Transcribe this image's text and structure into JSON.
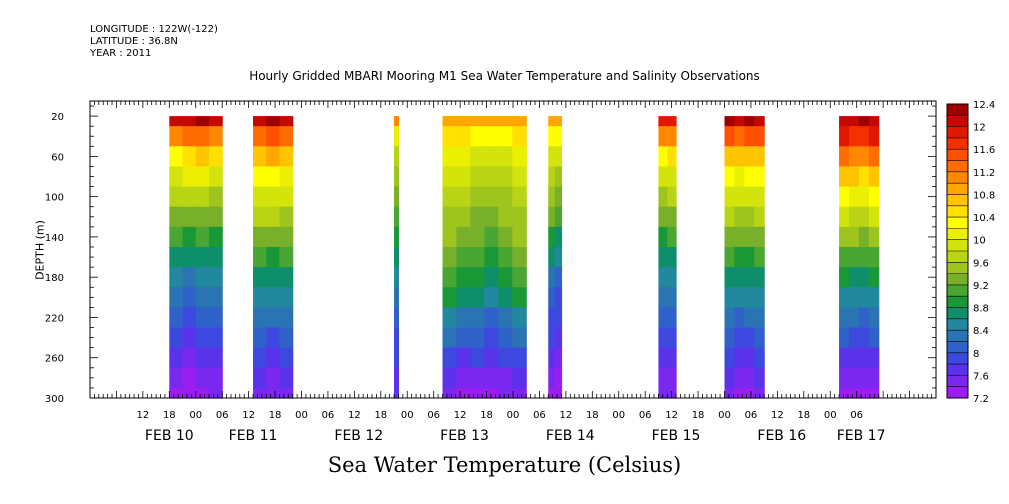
{
  "header": {
    "longitude": "LONGITUDE : 122W(-122)",
    "latitude": "LATITUDE : 36.8N",
    "year": "YEAR : 2011"
  },
  "chart_data": {
    "type": "heatmap",
    "title": "Hourly Gridded MBARI Mooring M1 Sea Water Temperature and Salinity Observations",
    "ylabel": "DEPTH (m)",
    "xlabel": "Sea Water Temperature (Celsius)",
    "ylim": [
      0,
      300
    ],
    "y_inverted": true,
    "y_ticks": [
      20,
      60,
      100,
      140,
      180,
      220,
      260,
      300
    ],
    "x_range_hours": [
      0,
      192
    ],
    "x_hour_ticks": [
      {
        "hour": 12,
        "label": "12"
      },
      {
        "hour": 18,
        "label": "18"
      },
      {
        "hour": 24,
        "label": "00"
      },
      {
        "hour": 30,
        "label": "06"
      },
      {
        "hour": 36,
        "label": "12"
      },
      {
        "hour": 42,
        "label": "18"
      },
      {
        "hour": 48,
        "label": "00"
      },
      {
        "hour": 54,
        "label": "06"
      },
      {
        "hour": 60,
        "label": "12"
      },
      {
        "hour": 66,
        "label": "18"
      },
      {
        "hour": 72,
        "label": "00"
      },
      {
        "hour": 78,
        "label": "06"
      },
      {
        "hour": 84,
        "label": "12"
      },
      {
        "hour": 90,
        "label": "18"
      },
      {
        "hour": 96,
        "label": "00"
      },
      {
        "hour": 102,
        "label": "06"
      },
      {
        "hour": 108,
        "label": "12"
      },
      {
        "hour": 114,
        "label": "18"
      },
      {
        "hour": 120,
        "label": "00"
      },
      {
        "hour": 126,
        "label": "06"
      },
      {
        "hour": 132,
        "label": "12"
      },
      {
        "hour": 138,
        "label": "18"
      },
      {
        "hour": 144,
        "label": "00"
      },
      {
        "hour": 150,
        "label": "06"
      },
      {
        "hour": 156,
        "label": "12"
      },
      {
        "hour": 162,
        "label": "18"
      },
      {
        "hour": 168,
        "label": "00"
      },
      {
        "hour": 174,
        "label": "06"
      }
    ],
    "day_labels": [
      {
        "hour": 18,
        "label": "FEB 10"
      },
      {
        "hour": 37,
        "label": "FEB 11"
      },
      {
        "hour": 61,
        "label": "FEB 12"
      },
      {
        "hour": 85,
        "label": "FEB 13"
      },
      {
        "hour": 109,
        "label": "FEB 14"
      },
      {
        "hour": 133,
        "label": "FEB 15"
      },
      {
        "hour": 157,
        "label": "FEB 16"
      },
      {
        "hour": 175,
        "label": "FEB 17"
      }
    ],
    "colorbar_levels": [
      7.2,
      7.4,
      7.6,
      7.8,
      8,
      8.2,
      8.4,
      8.6,
      8.8,
      9,
      9.2,
      9.4,
      9.6,
      9.8,
      10,
      10.2,
      10.4,
      10.6,
      10.8,
      11,
      11.2,
      11.4,
      11.6,
      11.8,
      12,
      12.2,
      12.4
    ],
    "colorbar_labels": [
      "7.2",
      "7.6",
      "8",
      "8.4",
      "8.8",
      "9.2",
      "9.6",
      "10",
      "10.4",
      "10.8",
      "11.2",
      "11.6",
      "12",
      "12.4"
    ],
    "colorbar_colors": [
      "#9a1ef0",
      "#7a28f0",
      "#5a32ea",
      "#3c48de",
      "#2e62c8",
      "#2a74b4",
      "#22889e",
      "#0e8e6a",
      "#1a9838",
      "#4aa632",
      "#78b02a",
      "#9ec41e",
      "#b8d414",
      "#d2e40c",
      "#eaf000",
      "#ffff00",
      "#ffe000",
      "#ffc400",
      "#ffa600",
      "#ff8800",
      "#ff6c00",
      "#ff5000",
      "#f43000",
      "#e01800",
      "#c40a00",
      "#9e0000"
    ],
    "depth_grid": [
      20,
      40,
      60,
      80,
      100,
      120,
      140,
      160,
      180,
      200,
      220,
      240,
      260,
      280,
      300
    ],
    "segments": [
      {
        "start_hour": 18,
        "end_hour": 30,
        "temperature": [
          [
            12.0,
            12.1,
            12.2,
            12.0
          ],
          [
            11.0,
            11.2,
            11.3,
            11.0
          ],
          [
            10.3,
            10.5,
            10.6,
            10.4
          ],
          [
            9.9,
            10.0,
            10.1,
            9.9
          ],
          [
            9.6,
            9.7,
            9.7,
            9.5
          ],
          [
            9.3,
            9.3,
            9.3,
            9.2
          ],
          [
            9.0,
            8.9,
            9.0,
            8.9
          ],
          [
            8.7,
            8.6,
            8.7,
            8.7
          ],
          [
            8.5,
            8.3,
            8.4,
            8.5
          ],
          [
            8.3,
            8.1,
            8.2,
            8.3
          ],
          [
            8.1,
            7.9,
            8.0,
            8.1
          ],
          [
            7.9,
            7.7,
            7.8,
            7.9
          ],
          [
            7.7,
            7.5,
            7.6,
            7.7
          ],
          [
            7.5,
            7.3,
            7.4,
            7.5
          ],
          [
            7.3,
            7.2,
            7.3,
            7.4
          ]
        ]
      },
      {
        "start_hour": 37,
        "end_hour": 46,
        "temperature": [
          [
            12.1,
            12.2,
            12.1
          ],
          [
            11.3,
            11.5,
            11.3
          ],
          [
            10.6,
            10.8,
            10.6
          ],
          [
            10.2,
            10.3,
            10.1
          ],
          [
            9.9,
            9.9,
            9.8
          ],
          [
            9.6,
            9.6,
            9.5
          ],
          [
            9.3,
            9.2,
            9.2
          ],
          [
            9.0,
            8.9,
            9.0
          ],
          [
            8.7,
            8.6,
            8.7
          ],
          [
            8.5,
            8.4,
            8.4
          ],
          [
            8.2,
            8.2,
            8.2
          ],
          [
            8.0,
            7.9,
            8.0
          ],
          [
            7.8,
            7.7,
            7.8
          ],
          [
            7.6,
            7.5,
            7.6
          ],
          [
            7.4,
            7.4,
            7.4
          ]
        ]
      },
      {
        "start_hour": 69,
        "end_hour": 70,
        "temperature": [
          [
            11.0
          ],
          [
            10.0
          ],
          [
            9.7
          ],
          [
            9.4
          ],
          [
            9.2
          ],
          [
            9.0
          ],
          [
            8.8
          ],
          [
            8.6
          ],
          [
            8.4
          ],
          [
            8.2
          ],
          [
            8.0
          ],
          [
            7.9
          ],
          [
            7.8
          ],
          [
            7.7
          ],
          [
            7.7
          ]
        ]
      },
      {
        "start_hour": 80,
        "end_hour": 99,
        "temperature": [
          [
            10.9,
            10.9,
            10.9,
            10.9,
            10.9,
            10.9
          ],
          [
            10.4,
            10.5,
            10.3,
            10.2,
            10.3,
            10.4
          ],
          [
            10.0,
            10.1,
            9.9,
            9.8,
            9.9,
            10.0
          ],
          [
            9.8,
            9.9,
            9.7,
            9.6,
            9.7,
            9.8
          ],
          [
            9.6,
            9.7,
            9.5,
            9.4,
            9.5,
            9.6
          ],
          [
            9.5,
            9.5,
            9.3,
            9.2,
            9.4,
            9.5
          ],
          [
            9.4,
            9.3,
            9.2,
            9.0,
            9.2,
            9.4
          ],
          [
            9.2,
            9.1,
            9.0,
            8.8,
            9.0,
            9.2
          ],
          [
            9.0,
            8.9,
            8.8,
            8.6,
            8.8,
            9.0
          ],
          [
            8.8,
            8.6,
            8.6,
            8.4,
            8.6,
            8.8
          ],
          [
            8.5,
            8.3,
            8.3,
            8.1,
            8.3,
            8.5
          ],
          [
            8.2,
            8.0,
            8.0,
            7.9,
            8.0,
            8.2
          ],
          [
            7.9,
            7.7,
            7.8,
            7.6,
            7.8,
            7.9
          ],
          [
            7.6,
            7.5,
            7.5,
            7.4,
            7.5,
            7.6
          ],
          [
            7.4,
            7.3,
            7.3,
            7.3,
            7.4,
            7.4
          ]
        ]
      },
      {
        "start_hour": 104,
        "end_hour": 107,
        "temperature": [
          [
            10.9,
            10.8
          ],
          [
            10.3,
            10.2
          ],
          [
            9.9,
            9.8
          ],
          [
            9.6,
            9.5
          ],
          [
            9.4,
            9.2
          ],
          [
            9.2,
            9.0
          ],
          [
            8.9,
            8.7
          ],
          [
            8.6,
            8.4
          ],
          [
            8.3,
            8.1
          ],
          [
            8.1,
            7.9
          ],
          [
            7.9,
            7.8
          ],
          [
            7.8,
            7.6
          ],
          [
            7.6,
            7.5
          ],
          [
            7.4,
            7.3
          ],
          [
            7.3,
            7.2
          ]
        ]
      },
      {
        "start_hour": 129,
        "end_hour": 133,
        "temperature": [
          [
            11.8,
            11.8
          ],
          [
            11.0,
            11.1
          ],
          [
            10.3,
            10.4
          ],
          [
            9.8,
            9.9
          ],
          [
            9.5,
            9.6
          ],
          [
            9.2,
            9.3
          ],
          [
            8.9,
            9.0
          ],
          [
            8.7,
            8.7
          ],
          [
            8.5,
            8.5
          ],
          [
            8.3,
            8.3
          ],
          [
            8.1,
            8.1
          ],
          [
            7.9,
            7.9
          ],
          [
            7.7,
            7.7
          ],
          [
            7.5,
            7.5
          ],
          [
            7.4,
            7.4
          ]
        ]
      },
      {
        "start_hour": 144,
        "end_hour": 153,
        "temperature": [
          [
            12.2,
            12.1,
            12.2,
            12.1
          ],
          [
            11.5,
            11.3,
            11.4,
            11.4
          ],
          [
            10.7,
            10.6,
            10.7,
            10.7
          ],
          [
            10.2,
            10.1,
            10.2,
            10.2
          ],
          [
            9.9,
            9.8,
            9.8,
            9.9
          ],
          [
            9.6,
            9.5,
            9.5,
            9.6
          ],
          [
            9.3,
            9.2,
            9.2,
            9.3
          ],
          [
            9.0,
            8.9,
            8.9,
            9.0
          ],
          [
            8.7,
            8.6,
            8.7,
            8.7
          ],
          [
            8.5,
            8.4,
            8.4,
            8.5
          ],
          [
            8.2,
            8.1,
            8.2,
            8.2
          ],
          [
            8.0,
            7.9,
            7.9,
            8.0
          ],
          [
            7.8,
            7.7,
            7.7,
            7.8
          ],
          [
            7.6,
            7.5,
            7.5,
            7.6
          ],
          [
            7.4,
            7.3,
            7.3,
            7.4
          ]
        ]
      },
      {
        "start_hour": 170,
        "end_hour": 179,
        "temperature": [
          [
            12.1,
            12.1,
            12.2,
            12.1
          ],
          [
            11.8,
            11.7,
            11.6,
            11.8
          ],
          [
            11.3,
            11.1,
            11.0,
            11.2
          ],
          [
            10.7,
            10.6,
            10.5,
            10.6
          ],
          [
            10.2,
            10.1,
            10.0,
            10.2
          ],
          [
            9.8,
            9.7,
            9.6,
            9.8
          ],
          [
            9.5,
            9.4,
            9.3,
            9.4
          ],
          [
            9.1,
            9.0,
            9.0,
            9.1
          ],
          [
            8.8,
            8.7,
            8.7,
            8.8
          ],
          [
            8.5,
            8.4,
            8.4,
            8.5
          ],
          [
            8.2,
            8.2,
            8.1,
            8.2
          ],
          [
            8.0,
            7.9,
            7.9,
            8.0
          ],
          [
            7.7,
            7.7,
            7.6,
            7.7
          ],
          [
            7.5,
            7.5,
            7.4,
            7.5
          ],
          [
            7.3,
            7.3,
            7.3,
            7.3
          ]
        ]
      }
    ]
  }
}
